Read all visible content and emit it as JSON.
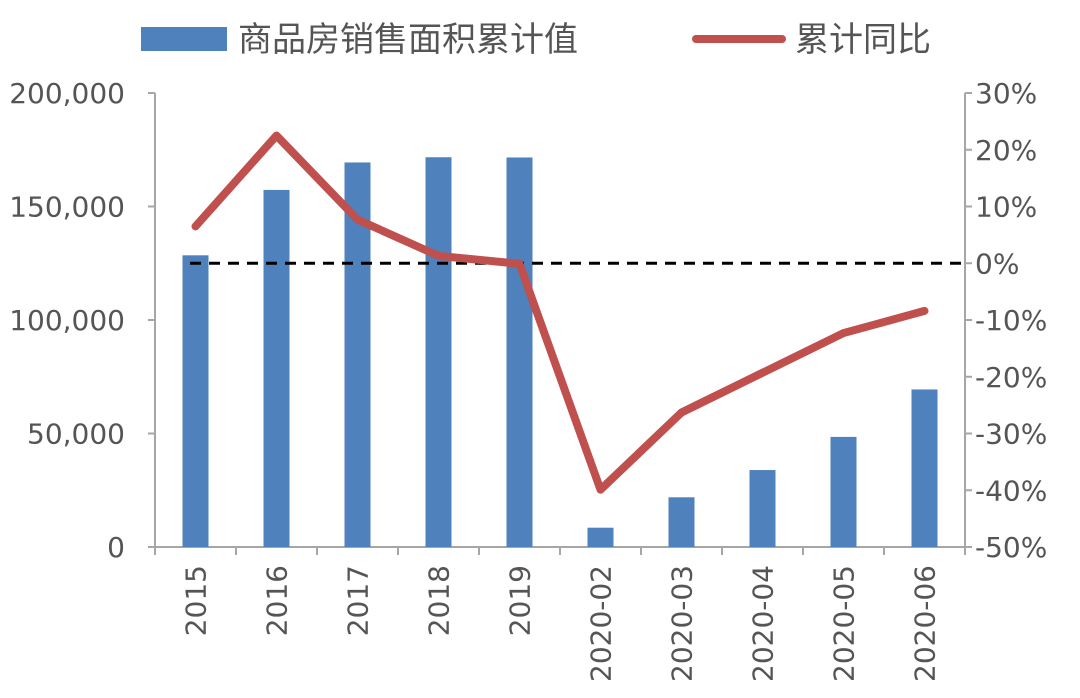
{
  "chart_data": {
    "type": "bar+line",
    "categories": [
      "2015",
      "2016",
      "2017",
      "2018",
      "2019",
      "2020-02",
      "2020-03",
      "2020-04",
      "2020-05",
      "2020-06"
    ],
    "series": [
      {
        "name": "商品房销售面积累计值",
        "type": "bar",
        "axis": "left",
        "color": "#4F81BD",
        "values": [
          128500,
          157300,
          169400,
          171700,
          171600,
          8500,
          21900,
          33900,
          48500,
          69400
        ]
      },
      {
        "name": "累计同比",
        "type": "line",
        "axis": "right",
        "color": "#C0504D",
        "values": [
          6.5,
          22.5,
          7.7,
          1.3,
          -0.1,
          -39.9,
          -26.3,
          -19.3,
          -12.3,
          -8.4
        ]
      }
    ],
    "y_left": {
      "min": 0,
      "max": 200000,
      "ticks": [
        0,
        50000,
        100000,
        150000,
        200000
      ],
      "tick_labels": [
        "0",
        "50,000",
        "100,000",
        "150,000",
        "200,000"
      ]
    },
    "y_right": {
      "min": -50,
      "max": 30,
      "ticks": [
        -50,
        -40,
        -30,
        -20,
        -10,
        0,
        10,
        20,
        30
      ],
      "tick_labels": [
        "-50%",
        "-40%",
        "-30%",
        "-20%",
        "-10%",
        "0%",
        "10%",
        "20%",
        "30%"
      ]
    },
    "reference_line": {
      "axis": "right",
      "value": 0,
      "style": "dashed",
      "color": "#000000"
    },
    "legend_position": "top",
    "grid": false
  }
}
